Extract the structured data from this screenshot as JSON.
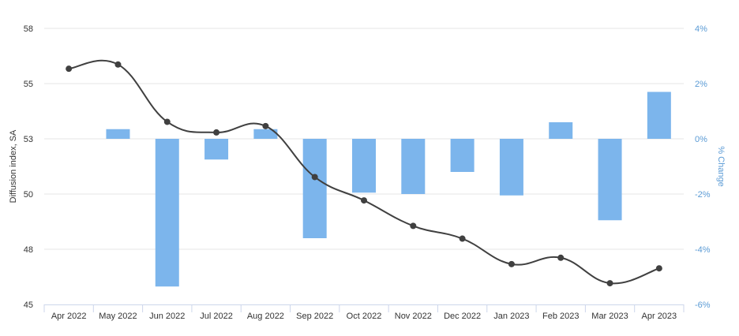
{
  "chart_data": {
    "type": "bar+line",
    "title": "",
    "categories": [
      "Apr 2022",
      "May 2022",
      "Jun 2022",
      "Jul 2022",
      "Aug 2022",
      "Sep 2022",
      "Oct 2022",
      "Nov 2022",
      "Dec 2022",
      "Jan 2023",
      "Feb 2023",
      "Mar 2023",
      "Apr 2023"
    ],
    "ylabel_left": "Diffusion index, SA",
    "ylabel_right": "% Change",
    "left_axis": {
      "min": 45,
      "max": 58,
      "ticks": [
        "58",
        "55",
        "53",
        "50",
        "48",
        "45"
      ]
    },
    "right_axis": {
      "min": -6,
      "max": 4,
      "ticks": [
        "4%",
        "2%",
        "0%",
        "-2%",
        "-4%",
        "-6%"
      ]
    },
    "series": [
      {
        "name": "",
        "type": "line",
        "axis": "left",
        "color": "#404040",
        "values": [
          56.1,
          56.3,
          53.6,
          53.1,
          53.4,
          51.0,
          49.9,
          48.7,
          48.1,
          46.9,
          47.2,
          46.0,
          46.7
        ]
      },
      {
        "name": "",
        "type": "bar",
        "axis": "right",
        "color": "#7cb5ec",
        "values": [
          null,
          0.35,
          -5.35,
          -0.75,
          0.35,
          -3.6,
          -1.95,
          -2.0,
          -1.2,
          -2.05,
          0.6,
          -2.95,
          1.7
        ]
      }
    ],
    "grid": true,
    "legend": "none"
  }
}
